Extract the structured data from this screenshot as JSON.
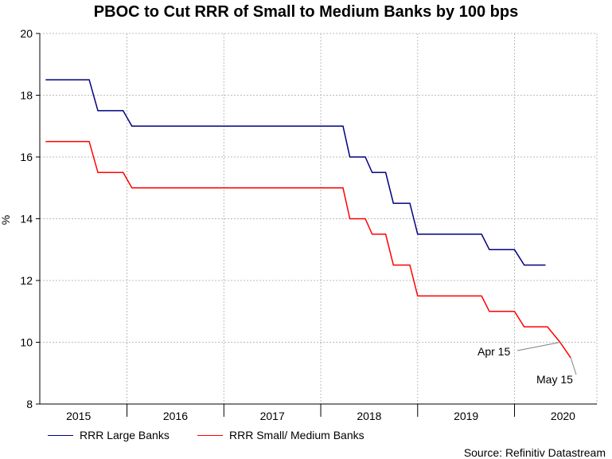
{
  "chart_data": {
    "type": "line",
    "title": "PBOC to Cut RRR of Small to Medium Banks by 100 bps",
    "ylabel": "%",
    "xlabel": "",
    "ylim": [
      8,
      20
    ],
    "yticks": [
      8,
      10,
      12,
      14,
      16,
      18,
      20
    ],
    "xlim": [
      2014.6,
      2020.35
    ],
    "x_tick_labels": [
      {
        "label": "2015",
        "x": 2015.0
      },
      {
        "label": "2016",
        "x": 2016.0
      },
      {
        "label": "2017",
        "x": 2017.0
      },
      {
        "label": "2018",
        "x": 2018.0
      },
      {
        "label": "2019",
        "x": 2019.0
      },
      {
        "label": "2020",
        "x": 2020.0
      }
    ],
    "year_boundaries": [
      2015.5,
      2016.5,
      2017.5,
      2018.5,
      2019.5
    ],
    "grid": true,
    "series": [
      {
        "name": "RRR Large Banks",
        "color": "#000080",
        "points": [
          [
            2014.66,
            18.5
          ],
          [
            2015.11,
            18.5
          ],
          [
            2015.2,
            17.5
          ],
          [
            2015.46,
            17.5
          ],
          [
            2015.55,
            17.0
          ],
          [
            2017.73,
            17.0
          ],
          [
            2017.8,
            16.0
          ],
          [
            2017.96,
            16.0
          ],
          [
            2018.03,
            15.5
          ],
          [
            2018.17,
            15.5
          ],
          [
            2018.25,
            14.5
          ],
          [
            2018.42,
            14.5
          ],
          [
            2018.5,
            13.5
          ],
          [
            2019.16,
            13.5
          ],
          [
            2019.24,
            13.0
          ],
          [
            2019.5,
            13.0
          ],
          [
            2019.6,
            12.5
          ],
          [
            2019.82,
            12.5
          ]
        ]
      },
      {
        "name": "RRR Small/ Medium Banks",
        "color": "#ff0000",
        "points": [
          [
            2014.66,
            16.5
          ],
          [
            2015.11,
            16.5
          ],
          [
            2015.2,
            15.5
          ],
          [
            2015.46,
            15.5
          ],
          [
            2015.55,
            15.0
          ],
          [
            2017.73,
            15.0
          ],
          [
            2017.8,
            14.0
          ],
          [
            2017.96,
            14.0
          ],
          [
            2018.03,
            13.5
          ],
          [
            2018.17,
            13.5
          ],
          [
            2018.25,
            12.5
          ],
          [
            2018.42,
            12.5
          ],
          [
            2018.5,
            11.5
          ],
          [
            2019.16,
            11.5
          ],
          [
            2019.24,
            11.0
          ],
          [
            2019.5,
            11.0
          ],
          [
            2019.6,
            10.5
          ],
          [
            2019.84,
            10.5
          ],
          [
            2019.97,
            10.0
          ],
          [
            2020.08,
            9.5
          ]
        ]
      }
    ],
    "annotations": [
      {
        "text": "Apr 15",
        "points_to": [
          2019.97,
          10.0
        ]
      },
      {
        "text": "May 15",
        "points_to": [
          2020.08,
          9.5
        ]
      }
    ],
    "legend_position": "bottom-left",
    "source": "Source: Refinitiv Datastream"
  }
}
